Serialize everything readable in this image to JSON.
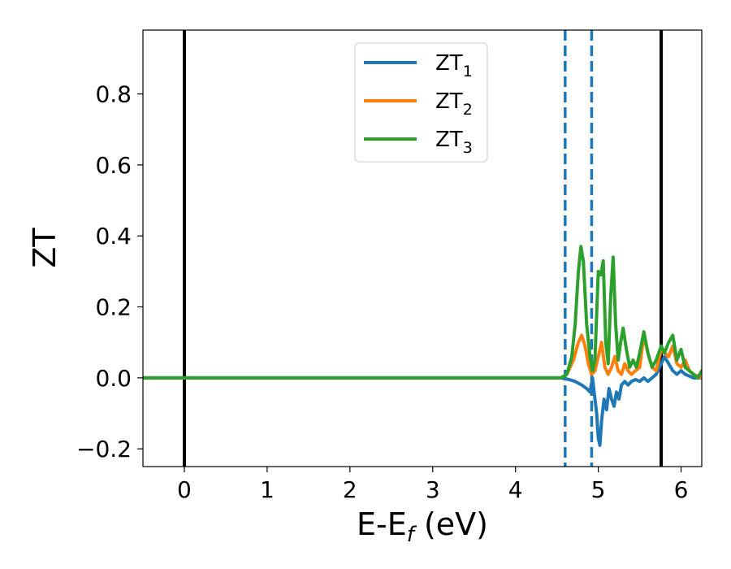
{
  "chart_data": {
    "type": "line",
    "xlabel_main": "E-E",
    "xlabel_sub": "f",
    "xlabel_unit": " (eV)",
    "ylabel": "ZT",
    "xlim": [
      -0.5,
      6.25
    ],
    "ylim": [
      -0.25,
      0.98
    ],
    "xticks": [
      0,
      1,
      2,
      3,
      4,
      5,
      6
    ],
    "xtick_labels": [
      "0",
      "1",
      "2",
      "3",
      "4",
      "5",
      "6"
    ],
    "yticks": [
      -0.2,
      0.0,
      0.2,
      0.4,
      0.6,
      0.8
    ],
    "ytick_labels": [
      "−0.2",
      "0.0",
      "0.2",
      "0.4",
      "0.6",
      "0.8"
    ],
    "grid": false,
    "legend_position": "top-center",
    "vlines": [
      {
        "x": 0.0,
        "style": "solid",
        "color": "#000000"
      },
      {
        "x": 5.76,
        "style": "solid",
        "color": "#000000"
      },
      {
        "x": 4.6,
        "style": "dashed",
        "color": "#1f77b4"
      },
      {
        "x": 4.92,
        "style": "dashed",
        "color": "#1f77b4"
      }
    ],
    "series": [
      {
        "name": "ZT",
        "sub": "1",
        "color": "#1f77b4",
        "x": [
          -0.5,
          4.55,
          4.65,
          4.72,
          4.8,
          4.86,
          4.9,
          4.93,
          4.96,
          4.98,
          5.0,
          5.02,
          5.04,
          5.07,
          5.1,
          5.13,
          5.16,
          5.19,
          5.22,
          5.25,
          5.28,
          5.32,
          5.36,
          5.4,
          5.45,
          5.5,
          5.55,
          5.6,
          5.65,
          5.7,
          5.76,
          5.8,
          5.85,
          5.9,
          5.95,
          6.0,
          6.05,
          6.1,
          6.15,
          6.25
        ],
        "y": [
          0.0,
          0.0,
          -0.005,
          -0.01,
          -0.02,
          -0.03,
          -0.04,
          0.0,
          -0.06,
          -0.1,
          -0.17,
          -0.19,
          -0.12,
          -0.06,
          -0.09,
          -0.03,
          -0.06,
          -0.08,
          -0.04,
          -0.06,
          -0.02,
          -0.01,
          -0.02,
          -0.01,
          -0.005,
          -0.01,
          0.0,
          -0.01,
          0.0,
          0.01,
          0.04,
          0.06,
          0.04,
          0.02,
          0.01,
          0.02,
          0.01,
          0.005,
          0.0,
          0.0
        ]
      },
      {
        "name": "ZT",
        "sub": "2",
        "color": "#ff7f0e",
        "x": [
          -0.5,
          4.55,
          4.62,
          4.7,
          4.76,
          4.8,
          4.84,
          4.88,
          4.92,
          4.96,
          5.0,
          5.04,
          5.08,
          5.12,
          5.16,
          5.2,
          5.24,
          5.28,
          5.32,
          5.36,
          5.4,
          5.45,
          5.5,
          5.55,
          5.6,
          5.65,
          5.7,
          5.76,
          5.8,
          5.85,
          5.9,
          5.95,
          6.0,
          6.05,
          6.1,
          6.15,
          6.25
        ],
        "y": [
          0.0,
          0.0,
          0.01,
          0.05,
          0.1,
          0.12,
          0.09,
          0.04,
          0.01,
          0.02,
          0.06,
          0.1,
          0.03,
          0.01,
          0.03,
          0.06,
          0.02,
          0.01,
          0.04,
          0.02,
          0.01,
          0.02,
          0.03,
          0.12,
          0.07,
          0.03,
          0.02,
          0.08,
          0.07,
          0.06,
          0.09,
          0.04,
          0.03,
          0.05,
          0.02,
          0.01,
          0.0
        ]
      },
      {
        "name": "ZT",
        "sub": "3",
        "color": "#2ca02c",
        "x": [
          -0.5,
          4.55,
          4.62,
          4.68,
          4.72,
          4.76,
          4.79,
          4.82,
          4.86,
          4.9,
          4.93,
          4.96,
          5.0,
          5.03,
          5.06,
          5.09,
          5.12,
          5.15,
          5.18,
          5.21,
          5.24,
          5.27,
          5.3,
          5.34,
          5.38,
          5.42,
          5.46,
          5.5,
          5.55,
          5.6,
          5.65,
          5.7,
          5.76,
          5.8,
          5.85,
          5.9,
          5.95,
          6.0,
          6.05,
          6.1,
          6.15,
          6.2,
          6.25
        ],
        "y": [
          0.0,
          0.0,
          0.01,
          0.06,
          0.15,
          0.3,
          0.37,
          0.33,
          0.15,
          0.06,
          0.02,
          0.05,
          0.3,
          0.29,
          0.33,
          0.1,
          0.04,
          0.23,
          0.34,
          0.15,
          0.05,
          0.1,
          0.14,
          0.08,
          0.03,
          0.05,
          0.03,
          0.07,
          0.13,
          0.07,
          0.03,
          0.05,
          0.09,
          0.07,
          0.1,
          0.12,
          0.05,
          0.08,
          0.03,
          0.02,
          0.01,
          0.0,
          0.02
        ]
      }
    ]
  }
}
